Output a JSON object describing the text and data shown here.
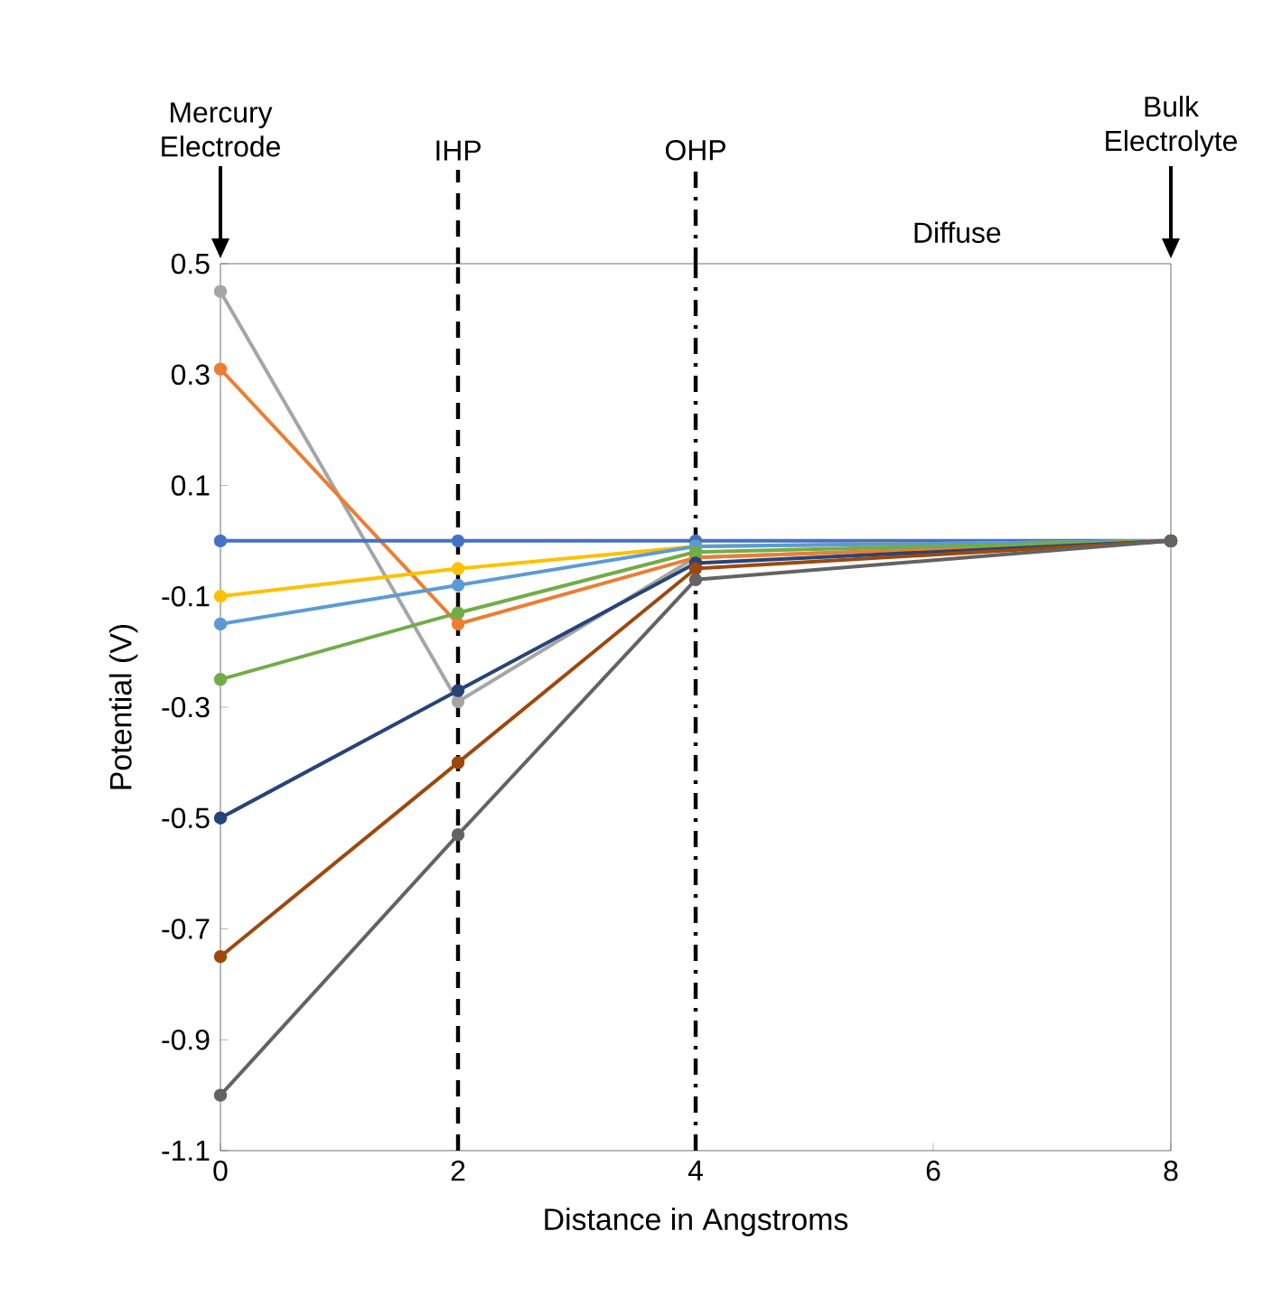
{
  "chart_data": {
    "type": "line",
    "xlabel": "Distance in Angstroms",
    "ylabel": "Potential (V)",
    "categories": [
      "0",
      "2",
      "4",
      "6",
      "8"
    ],
    "ylim": [
      -1.1,
      0.5
    ],
    "yticks": [
      -1.1,
      -0.9,
      -0.7,
      -0.5,
      -0.3,
      -0.1,
      0.1,
      0.3,
      0.5
    ],
    "marker": "circle",
    "line_style": "solid",
    "grid": false,
    "series": [
      {
        "color": "#a5a5a5",
        "values": [
          0.45,
          -0.29,
          -0.03,
          null,
          0
        ]
      },
      {
        "color": "#ed7d31",
        "values": [
          0.31,
          -0.15,
          -0.03,
          null,
          0
        ]
      },
      {
        "color": "#4472c4",
        "values": [
          0,
          0,
          0,
          null,
          0
        ]
      },
      {
        "color": "#ffc000",
        "values": [
          -0.1,
          -0.05,
          -0.01,
          null,
          0
        ]
      },
      {
        "color": "#5b9bd5",
        "values": [
          -0.15,
          -0.08,
          -0.01,
          null,
          0
        ]
      },
      {
        "color": "#70ad47",
        "values": [
          -0.25,
          -0.13,
          -0.02,
          null,
          0
        ]
      },
      {
        "color": "#264478",
        "values": [
          -0.5,
          -0.27,
          -0.04,
          null,
          0
        ]
      },
      {
        "color": "#9e480e",
        "values": [
          -0.75,
          -0.4,
          -0.05,
          null,
          0
        ]
      },
      {
        "color": "#636363",
        "values": [
          -1.0,
          -0.53,
          -0.07,
          null,
          0
        ]
      }
    ],
    "ref_lines": [
      {
        "axis": "x",
        "value": "2",
        "label": "IHP",
        "line_style": "dashed",
        "color": "#000000"
      },
      {
        "axis": "x",
        "value": "4",
        "label": "OHP",
        "line_style": "dashdot",
        "color": "#000000"
      }
    ],
    "annotations": [
      "Mercury Electrode",
      "Bulk Electrolyte",
      "Diffuse"
    ]
  }
}
